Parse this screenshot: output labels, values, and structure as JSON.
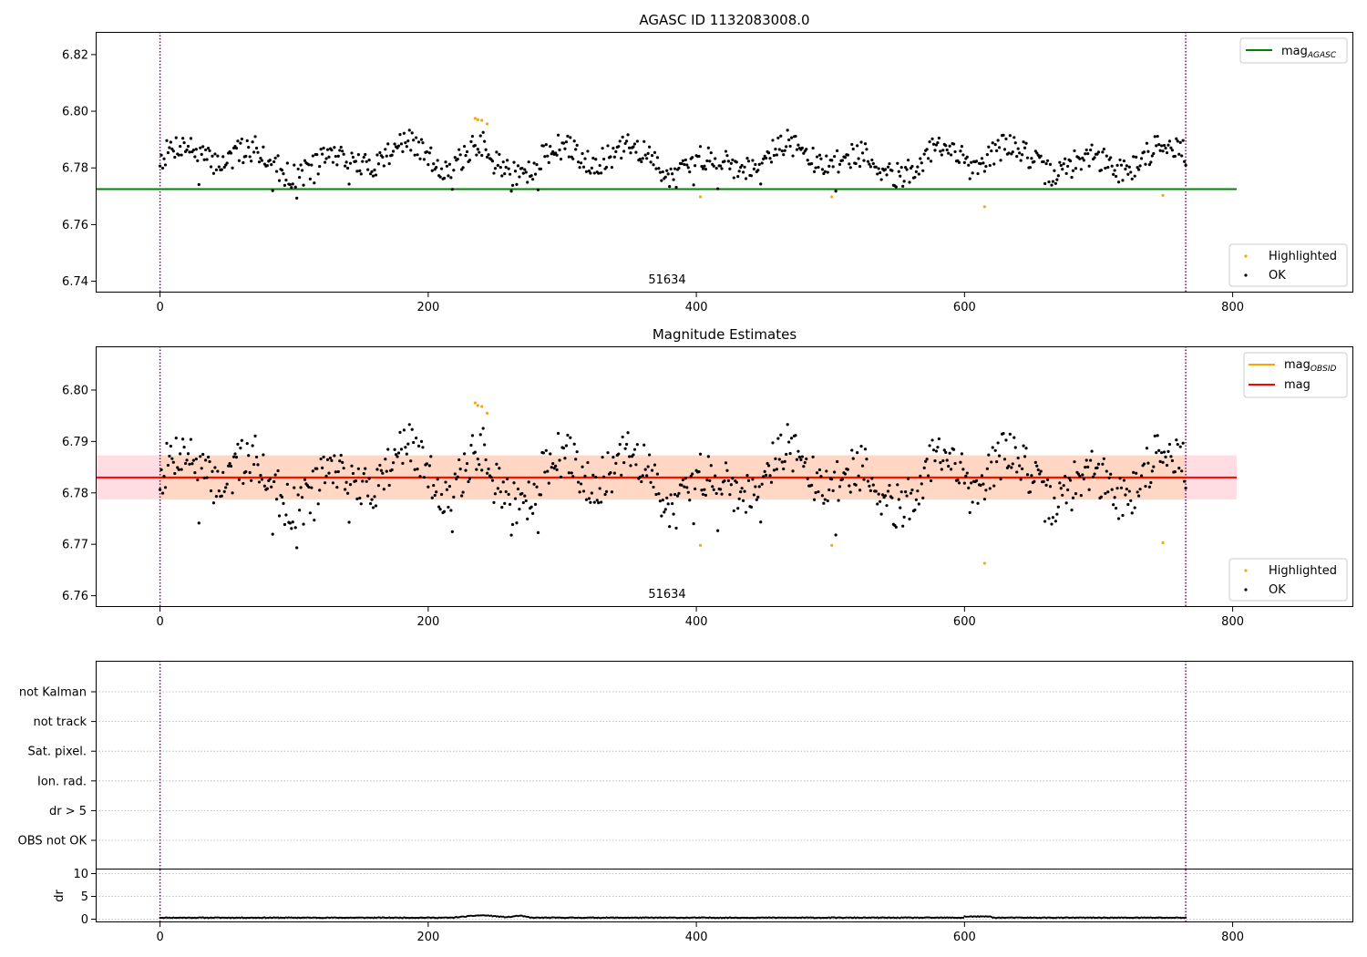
{
  "chart_data": [
    {
      "type": "scatter",
      "title": "AGASC ID 1132083008.0",
      "xlim": [
        -48,
        890
      ],
      "ylim": [
        6.736,
        6.828
      ],
      "xticks": [
        0,
        200,
        400,
        600,
        800
      ],
      "yticks": [
        6.74,
        6.76,
        6.78,
        6.8,
        6.82
      ],
      "ytick_labels": [
        "6.74",
        "6.76",
        "6.78",
        "6.80",
        "6.82"
      ],
      "xtick_labels": [
        "0",
        "200",
        "400",
        "600",
        "800"
      ],
      "annotation": "51634",
      "annotation_x": 382,
      "vlines": [
        0,
        765
      ],
      "hline": {
        "y": 6.7725,
        "x0": -48,
        "x1": 803,
        "color": "#008000"
      },
      "legend_lines": [
        {
          "name": "mag",
          "subscript": "AGASC",
          "color": "#008000"
        }
      ],
      "legend_points": [
        {
          "name": "Highlighted",
          "color": "#ffa500"
        },
        {
          "name": "OK",
          "color": "#000000"
        }
      ],
      "highlighted": [
        [
          235,
          6.7975
        ],
        [
          237,
          6.797
        ],
        [
          240,
          6.7968
        ],
        [
          244,
          6.7955
        ],
        [
          403,
          6.7698
        ],
        [
          501,
          6.7698
        ],
        [
          615,
          6.7663
        ],
        [
          748,
          6.7703
        ]
      ],
      "ok_model": {
        "n": 766,
        "seed": 7,
        "base": 6.783
      }
    },
    {
      "type": "scatter",
      "title": "Magnitude Estimates",
      "xlim": [
        -48,
        890
      ],
      "ylim": [
        6.7578,
        6.8085
      ],
      "xticks": [
        0,
        200,
        400,
        600,
        800
      ],
      "yticks": [
        6.76,
        6.77,
        6.78,
        6.79,
        6.8
      ],
      "ytick_labels": [
        "6.76",
        "6.77",
        "6.78",
        "6.79",
        "6.80"
      ],
      "xtick_labels": [
        "0",
        "200",
        "400",
        "600",
        "800"
      ],
      "annotation": "51634",
      "annotation_x": 382,
      "vlines": [
        0,
        765
      ],
      "mag": 6.783,
      "band_pink": {
        "y0": 6.7787,
        "y1": 6.7873,
        "x0": -48,
        "x1": 803,
        "color": "#ffdde2"
      },
      "band_orange": {
        "y0": 6.7787,
        "y1": 6.7873,
        "x0": 0,
        "x1": 765,
        "color": "#ffd7c4"
      },
      "legend_lines": [
        {
          "name": "mag",
          "subscript": "OBSID",
          "color": "#ffa500"
        },
        {
          "name": "mag",
          "subscript": "",
          "color": "#ff0000"
        }
      ],
      "legend_points": [
        {
          "name": "Highlighted",
          "color": "#ffa500"
        },
        {
          "name": "OK",
          "color": "#000000"
        }
      ],
      "highlighted": [
        [
          235,
          6.7975
        ],
        [
          237,
          6.797
        ],
        [
          240,
          6.7968
        ],
        [
          244,
          6.7955
        ],
        [
          403,
          6.7698
        ],
        [
          501,
          6.7698
        ],
        [
          615,
          6.7663
        ],
        [
          748,
          6.7703
        ]
      ]
    },
    {
      "type": "flags",
      "categories": [
        "not Kalman",
        "not track",
        "Sat. pixel.",
        "Ion. rad.",
        "dr > 5",
        "OBS not OK"
      ],
      "xlim": [
        -48,
        890
      ],
      "vlines": [
        0,
        765
      ]
    },
    {
      "type": "scatter",
      "ylabel": "dr",
      "xlim": [
        -48,
        890
      ],
      "ylim": [
        -0.7,
        10.9
      ],
      "yticks": [
        0,
        5,
        10
      ],
      "ytick_labels": [
        "0",
        "5",
        "10"
      ],
      "xticks": [
        0,
        200,
        400,
        600,
        800
      ],
      "xtick_labels": [
        "0",
        "200",
        "400",
        "600",
        "800"
      ],
      "vlines": [
        0,
        765
      ]
    }
  ]
}
